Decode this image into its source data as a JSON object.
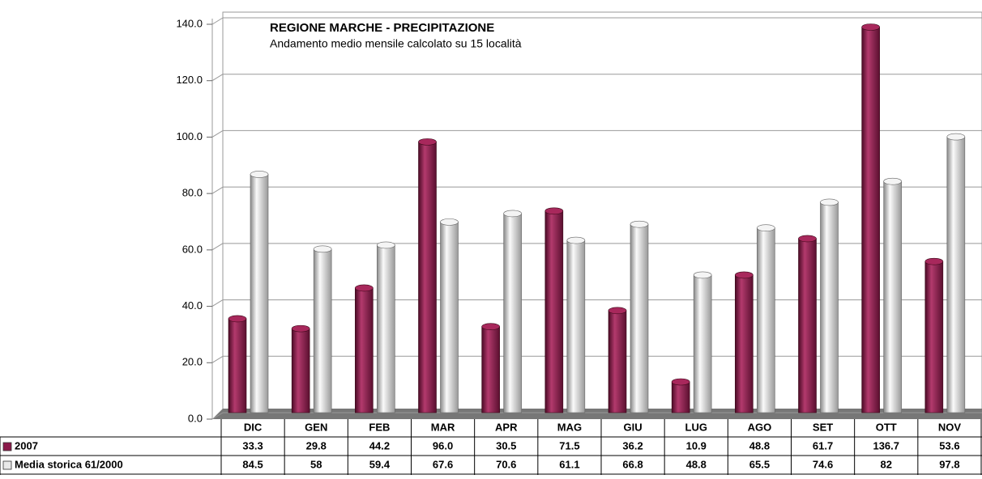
{
  "chart_data": {
    "type": "bar",
    "title": "REGIONE MARCHE - PRECIPITAZIONE",
    "subtitle": "Andamento medio mensile calcolato su 15 località",
    "categories": [
      "DIC",
      "GEN",
      "FEB",
      "MAR",
      "APR",
      "MAG",
      "GIU",
      "LUG",
      "AGO",
      "SET",
      "OTT",
      "NOV"
    ],
    "series": [
      {
        "name": "2007",
        "color": "#8b1a4a",
        "values": [
          33.3,
          29.8,
          44.2,
          96.0,
          30.5,
          71.5,
          36.2,
          10.9,
          48.8,
          61.7,
          136.7,
          53.6
        ],
        "value_labels": [
          "33.3",
          "29.8",
          "44.2",
          "96.0",
          "30.5",
          "71.5",
          "36.2",
          "10.9",
          "48.8",
          "61.7",
          "136.7",
          "53.6"
        ]
      },
      {
        "name": "Media storica 61/2000",
        "color": "#e8e8e8",
        "values": [
          84.5,
          58,
          59.4,
          67.6,
          70.6,
          61.1,
          66.8,
          48.8,
          65.5,
          74.6,
          82,
          97.8
        ]
      }
    ],
    "ylim": [
      0,
      140
    ],
    "yticks": [
      {
        "value": 0,
        "label": "0.0"
      },
      {
        "value": 20,
        "label": "20.0"
      },
      {
        "value": 40,
        "label": "40.0"
      },
      {
        "value": 60,
        "label": "60.0"
      },
      {
        "value": 80,
        "label": "80.0"
      },
      {
        "value": 100,
        "label": "100.0"
      },
      {
        "value": 120,
        "label": "120.0"
      },
      {
        "value": 140,
        "label": "140.0"
      }
    ],
    "grid": true
  }
}
